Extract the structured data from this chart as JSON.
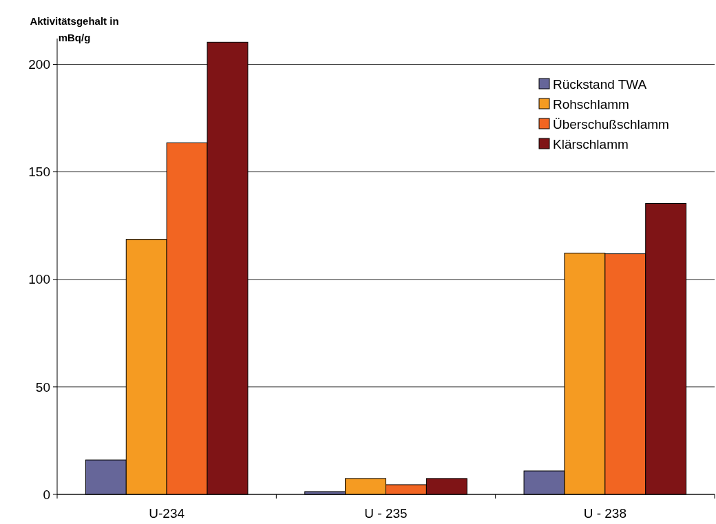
{
  "chart_data": {
    "type": "bar",
    "ylabel": "Aktivitätsgehalt in mBq/g",
    "categories": [
      "U-234",
      "U - 235",
      "U - 238"
    ],
    "series": [
      {
        "name": "Rückstand TWA",
        "color": "#666699",
        "values": [
          16,
          1.3,
          10.9
        ]
      },
      {
        "name": "Rohschlamm",
        "color": "#f59b22",
        "values": [
          118.6,
          7.4,
          112.2
        ]
      },
      {
        "name": "Überschußschlamm",
        "color": "#f26522",
        "values": [
          163.5,
          4.5,
          111.9
        ]
      },
      {
        "name": "Klärschlamm",
        "color": "#7f1416",
        "values": [
          210.3,
          7.4,
          135.3
        ]
      }
    ],
    "ylim": [
      0,
      212
    ],
    "yticks": [
      0,
      50,
      100,
      150,
      200
    ],
    "grid": "y",
    "legend": "top right"
  }
}
